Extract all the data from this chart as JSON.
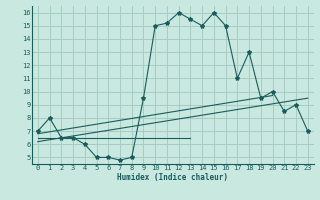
{
  "title": "",
  "xlabel": "Humidex (Indice chaleur)",
  "background_color": "#c8e8e0",
  "grid_color": "#a8ccc4",
  "line_color": "#1a5c5c",
  "xlim": [
    -0.5,
    23.5
  ],
  "ylim": [
    4.5,
    16.5
  ],
  "yticks": [
    5,
    6,
    7,
    8,
    9,
    10,
    11,
    12,
    13,
    14,
    15,
    16
  ],
  "xticks": [
    0,
    1,
    2,
    3,
    4,
    5,
    6,
    7,
    8,
    9,
    10,
    11,
    12,
    13,
    14,
    15,
    16,
    17,
    18,
    19,
    20,
    21,
    22,
    23
  ],
  "hours": [
    0,
    1,
    2,
    3,
    4,
    5,
    6,
    7,
    8,
    9,
    10,
    11,
    12,
    13,
    14,
    15,
    16,
    17,
    18,
    19,
    20,
    21,
    22,
    23
  ],
  "main_curve": [
    7.0,
    8.0,
    6.5,
    6.5,
    6.0,
    5.0,
    5.0,
    4.8,
    5.0,
    9.5,
    15.0,
    15.2,
    16.0,
    15.5,
    15.0,
    16.0,
    15.0,
    11.0,
    13.0,
    9.5,
    10.0,
    8.5,
    9.0,
    7.0
  ],
  "line1_x": [
    0,
    20
  ],
  "line1_y": [
    6.8,
    9.7
  ],
  "line2_x": [
    0,
    23
  ],
  "line2_y": [
    6.2,
    9.5
  ],
  "line3_x": [
    0,
    13
  ],
  "line3_y": [
    6.5,
    6.5
  ]
}
